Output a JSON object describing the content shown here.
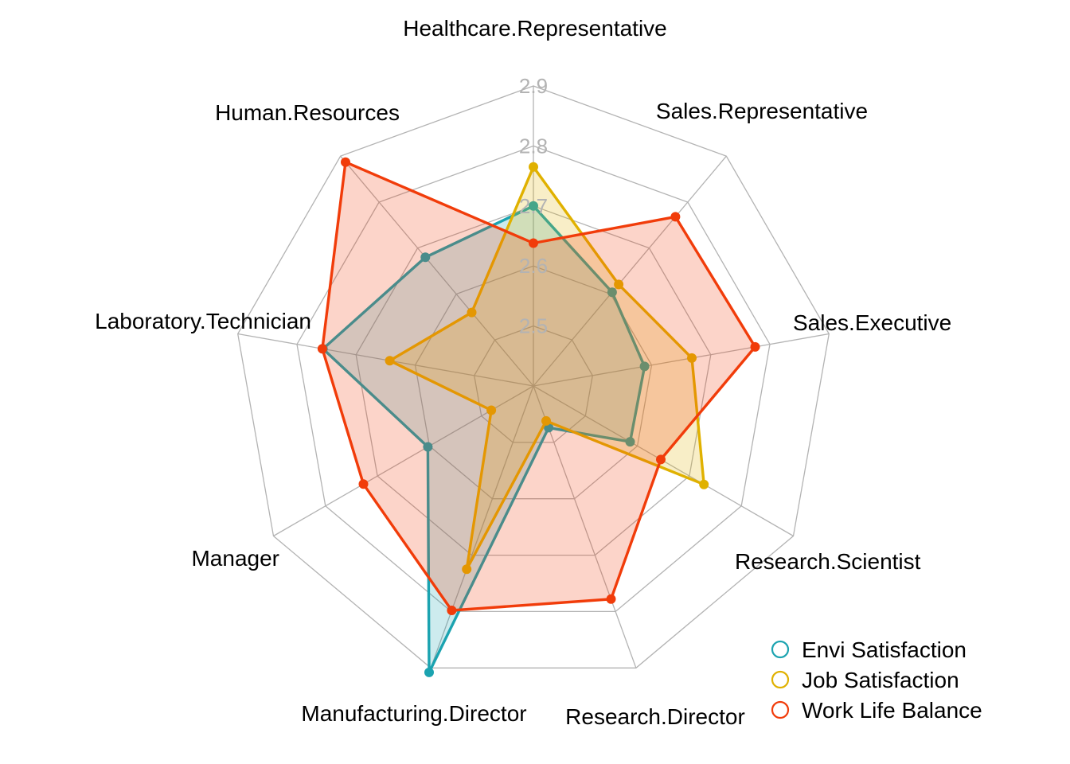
{
  "chart_data": {
    "type": "radar",
    "categories": [
      "Healthcare.Representative",
      "Sales.Representative",
      "Sales.Executive",
      "Research.Scientist",
      "Research.Director",
      "Manufacturing.Director",
      "Manager",
      "Laboratory.Technician",
      "Human.Resources"
    ],
    "radial_ticks": [
      "2.5",
      "2.6",
      "2.7",
      "2.8",
      "2.9"
    ],
    "rlim": [
      2.4,
      2.9
    ],
    "grid": true,
    "legend_position": "bottom-right",
    "series": [
      {
        "name": "Envi Satisfaction",
        "color": "#1ba3b0",
        "values": [
          2.7,
          2.604,
          2.588,
          2.586,
          2.474,
          2.908,
          2.603,
          2.756,
          2.68
        ]
      },
      {
        "name": "Job Satisfaction",
        "color": "#e0b100",
        "values": [
          2.765,
          2.621,
          2.668,
          2.728,
          2.462,
          2.725,
          2.481,
          2.643,
          2.56
        ]
      },
      {
        "name": "Work Life Balance",
        "color": "#f13c0a",
        "values": [
          2.638,
          2.768,
          2.775,
          2.645,
          2.778,
          2.798,
          2.727,
          2.757,
          2.887
        ]
      }
    ]
  }
}
